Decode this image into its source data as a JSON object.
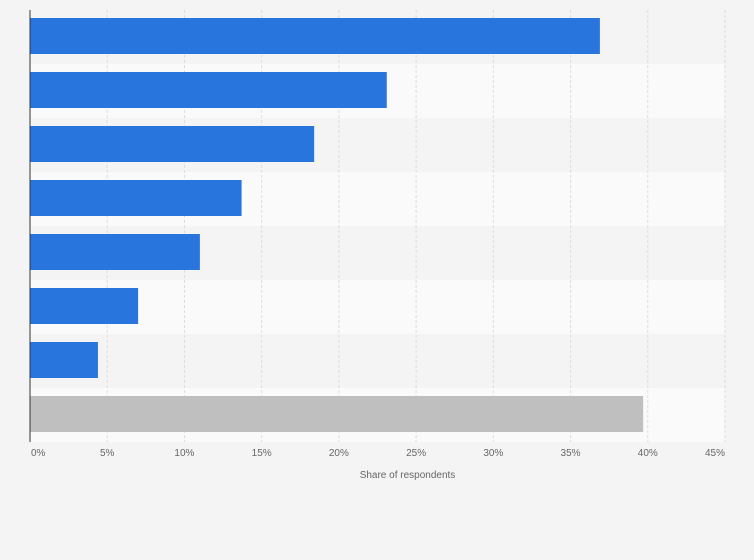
{
  "chart_data": {
    "type": "bar",
    "orientation": "horizontal",
    "categories": [
      "",
      "",
      "",
      "",
      "",
      "",
      "",
      ""
    ],
    "values": [
      36.9,
      23.1,
      18.4,
      13.7,
      11.0,
      7.0,
      4.4,
      39.7
    ],
    "bar_colors": [
      "#2876dd",
      "#2876dd",
      "#2876dd",
      "#2876dd",
      "#2876dd",
      "#2876dd",
      "#2876dd",
      "#bfbfbf"
    ],
    "xlim": [
      0,
      45
    ],
    "x_ticks": [
      0,
      5,
      10,
      15,
      20,
      25,
      30,
      35,
      40,
      45
    ],
    "x_tick_labels": [
      "0%",
      "5%",
      "10%",
      "15%",
      "20%",
      "25%",
      "30%",
      "35%",
      "40%",
      "45%"
    ],
    "xlabel": "Share of respondents",
    "grid": true,
    "colors": {
      "bar": "#2876dd",
      "bar_other": "#bfbfbf",
      "band_a": "#f4f4f4",
      "band_b": "#fafafa",
      "grid": "#dddddd",
      "axis": "#333333"
    }
  }
}
